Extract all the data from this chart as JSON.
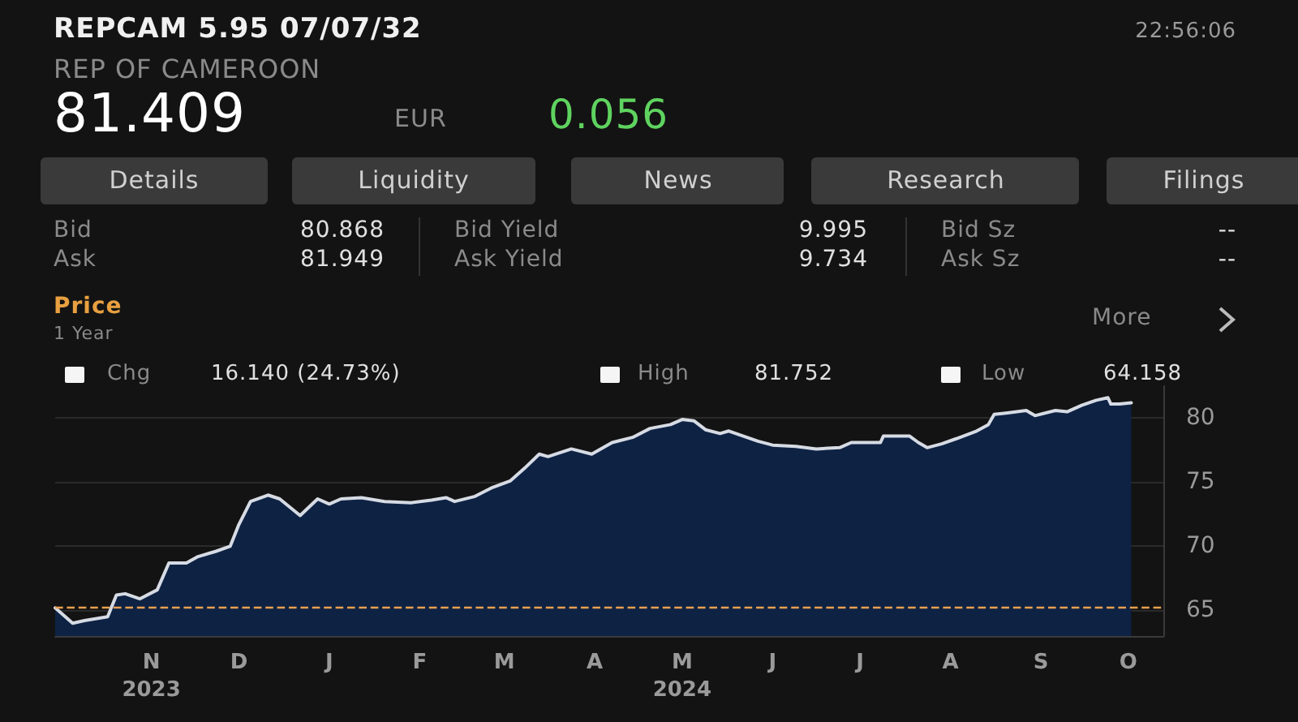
{
  "chart_data": {
    "type": "area",
    "title": "REPCAM 5.95 07/07/32",
    "subtitle": "REP OF CAMEROON",
    "annotations": [
      "22:56:06",
      "81.409",
      "EUR",
      "0.056",
      "Details",
      "Liquidity",
      "News",
      "Research",
      "Filings",
      "Bid",
      "80.868",
      "Bid Yield",
      "9.995",
      "Bid Sz",
      "--",
      "Ask",
      "81.949",
      "Ask Yield",
      "9.734",
      "Ask Sz",
      "--",
      "Price",
      "1 Year",
      "More",
      "Chg",
      "16.140 (24.73%)",
      "High",
      "81.752",
      "Low",
      "64.158"
    ],
    "x": [
      "2023-09-29",
      "2023-10-05",
      "2023-10-09",
      "2023-10-17",
      "2023-10-20",
      "2023-10-23",
      "2023-10-28",
      "2023-11-03",
      "2023-11-07",
      "2023-11-13",
      "2023-11-17",
      "2023-11-23",
      "2023-11-28",
      "2023-12-01",
      "2023-12-05",
      "2023-12-11",
      "2023-12-15",
      "2023-12-22",
      "2023-12-28",
      "2024-01-01",
      "2024-01-05",
      "2024-01-12",
      "2024-01-20",
      "2024-01-29",
      "2024-02-05",
      "2024-02-10",
      "2024-02-13",
      "2024-02-20",
      "2024-02-26",
      "2024-03-03",
      "2024-03-08",
      "2024-03-13",
      "2024-03-16",
      "2024-03-24",
      "2024-03-31",
      "2024-04-07",
      "2024-04-14",
      "2024-04-20",
      "2024-04-27",
      "2024-05-01",
      "2024-05-05",
      "2024-05-09",
      "2024-05-14",
      "2024-05-17",
      "2024-05-22",
      "2024-05-27",
      "2024-06-01",
      "2024-06-09",
      "2024-06-16",
      "2024-06-24",
      "2024-06-28",
      "2024-07-08",
      "2024-07-09",
      "2024-07-18",
      "2024-07-21",
      "2024-07-24",
      "2024-07-29",
      "2024-08-03",
      "2024-08-10",
      "2024-08-14",
      "2024-08-16",
      "2024-08-20",
      "2024-08-27",
      "2024-08-30",
      "2024-09-06",
      "2024-09-10",
      "2024-09-15",
      "2024-09-20",
      "2024-09-24",
      "2024-09-25",
      "2024-09-28",
      "2024-10-02"
    ],
    "series": [
      {
        "color": "#0e2244",
        "values": [
          65.2,
          64.0,
          64.2,
          64.5,
          66.2,
          66.3,
          65.9,
          66.6,
          68.7,
          68.7,
          69.2,
          69.6,
          70.0,
          71.7,
          73.5,
          74.0,
          73.7,
          72.4,
          73.7,
          73.3,
          73.7,
          73.8,
          73.5,
          73.4,
          73.6,
          73.8,
          73.5,
          73.9,
          74.6,
          75.1,
          76.1,
          77.2,
          77.0,
          77.6,
          77.2,
          78.1,
          78.5,
          79.2,
          79.5,
          79.9,
          79.8,
          79.1,
          78.8,
          79.0,
          78.6,
          78.2,
          77.9,
          77.8,
          77.6,
          77.7,
          78.1,
          78.1,
          78.6,
          78.6,
          78.1,
          77.7,
          78.0,
          78.4,
          79.0,
          79.5,
          80.3,
          80.4,
          80.6,
          80.2,
          80.6,
          80.5,
          81.0,
          81.4,
          81.6,
          81.1,
          81.1,
          81.2
        ]
      }
    ],
    "xlim": [
      "2023-09-29",
      "2024-10-13"
    ],
    "xticks": [
      {
        "value": "2023-11-01",
        "label": "N\n2023"
      },
      {
        "value": "2023-12-01",
        "label": "D"
      },
      {
        "value": "2024-01-01",
        "label": "J"
      },
      {
        "value": "2024-02-01",
        "label": "F"
      },
      {
        "value": "2024-03-01",
        "label": "M"
      },
      {
        "value": "2024-04-01",
        "label": "A"
      },
      {
        "value": "2024-05-01",
        "label": "M\n2024"
      },
      {
        "value": "2024-06-01",
        "label": "J"
      },
      {
        "value": "2024-07-01",
        "label": "J"
      },
      {
        "value": "2024-08-01",
        "label": "A"
      },
      {
        "value": "2024-09-01",
        "label": "S"
      },
      {
        "value": "2024-10-01",
        "label": "O"
      }
    ],
    "ylim": [
      63,
      82.5
    ],
    "yticks": [
      65,
      70,
      75,
      80
    ],
    "ref_lines": [
      {
        "axis": "y",
        "value": 65.3,
        "color": "#e8a050",
        "line_style": "dashed"
      }
    ],
    "grid": "y",
    "marker": "none",
    "line_style": "solid"
  }
}
